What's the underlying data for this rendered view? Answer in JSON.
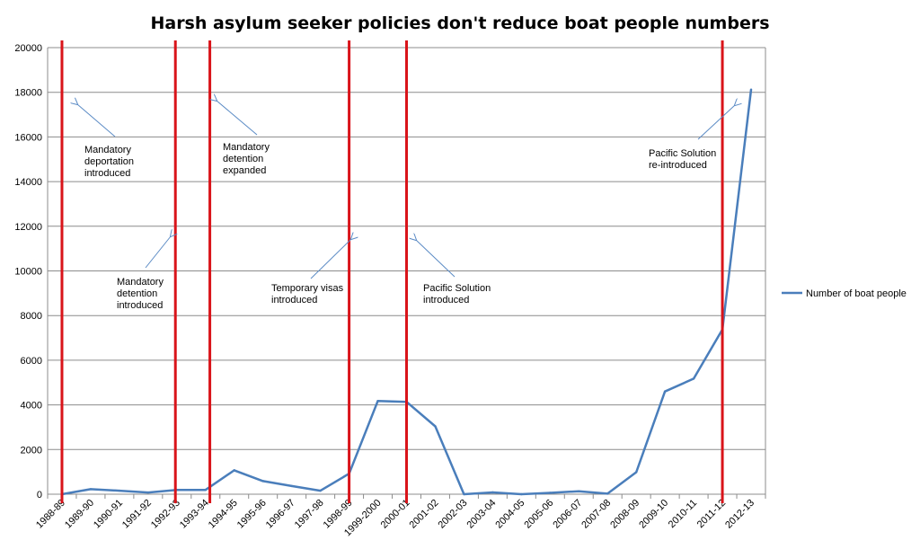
{
  "chart_data": {
    "type": "line",
    "title": "Harsh asylum seeker policies don't reduce boat people numbers",
    "xlabel": "",
    "ylabel": "",
    "ylim": [
      0,
      20000
    ],
    "yticks": [
      0,
      2000,
      4000,
      6000,
      8000,
      10000,
      12000,
      14000,
      16000,
      18000,
      20000
    ],
    "grid": "horizontal",
    "legend_position": "right",
    "categories": [
      "1988-89",
      "1989-90",
      "1990-91",
      "1991-92",
      "1992-93",
      "1993-94",
      "1994-95",
      "1995-96",
      "1996-97",
      "1997-98",
      "1998-99",
      "1999-2000",
      "2000-01",
      "2001-02",
      "2002-03",
      "2003-04",
      "2004-05",
      "2005-06",
      "2006-07",
      "2007-08",
      "2008-09",
      "2009-10",
      "2010-11",
      "2011-12",
      "2012-13"
    ],
    "series": [
      {
        "name": "Number of boat people",
        "color": "#4a7ebb",
        "values": [
          0,
          224,
          158,
          78,
          194,
          194,
          1071,
          589,
          365,
          157,
          921,
          4175,
          4137,
          3039,
          0,
          82,
          0,
          61,
          133,
          25,
          985,
          4600,
          5175,
          7379,
          18119
        ]
      }
    ],
    "policy_lines": [
      {
        "at": 0.5,
        "label": [
          "Mandatory",
          "deportation",
          "introduced"
        ]
      },
      {
        "at": 4.45,
        "label": [
          "Mandatory",
          "detention",
          "introduced"
        ]
      },
      {
        "at": 5.65,
        "label": [
          "Mandatory",
          "detention",
          "expanded"
        ]
      },
      {
        "at": 10.5,
        "label": [
          "Temporary visas",
          "introduced"
        ]
      },
      {
        "at": 12.5,
        "label": [
          "Pacific Solution",
          "introduced"
        ]
      },
      {
        "at": 23.5,
        "label": [
          "Pacific Solution",
          "re-introduced"
        ]
      }
    ],
    "policy_line_color": "#d9141a"
  }
}
